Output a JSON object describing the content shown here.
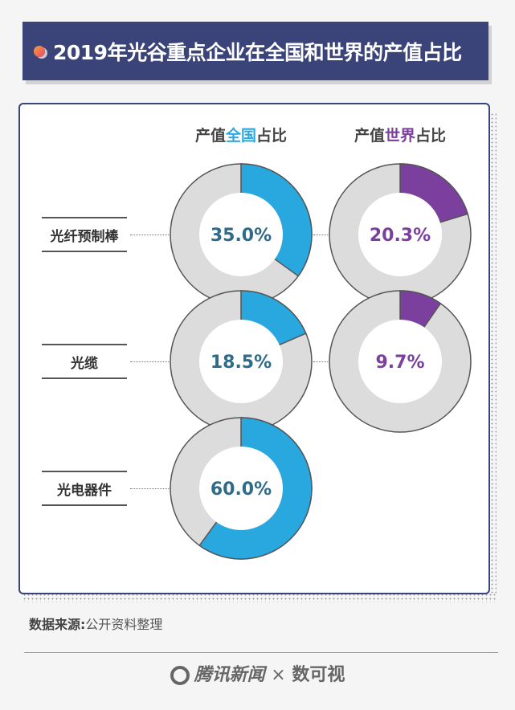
{
  "title": "2019年光谷重点企业在全国和世界的产值占比",
  "chart_data": {
    "type": "pie",
    "columns": [
      {
        "prefix": "产值",
        "highlight": "全国",
        "suffix": "占比",
        "color": "#29a8e0",
        "text_color": "#2e6b8a"
      },
      {
        "prefix": "产值",
        "highlight": "世界",
        "suffix": "占比",
        "color": "#7b3f9e",
        "text_color": "#7b3f9e"
      }
    ],
    "rows": [
      {
        "label": "光纤预制棒",
        "values": [
          35.0,
          20.3
        ],
        "labels": [
          "35.0%",
          "20.3%"
        ]
      },
      {
        "label": "光缆",
        "values": [
          18.5,
          9.7
        ],
        "labels": [
          "18.5%",
          "9.7%"
        ]
      },
      {
        "label": "光电器件",
        "values": [
          60.0,
          null
        ],
        "labels": [
          "60.0%",
          ""
        ]
      }
    ],
    "remainder_color": "#dcdcdc",
    "unit": "%"
  },
  "source": {
    "label": "数据来源",
    "sep": ":",
    "text": "公开资料整理"
  },
  "footer": {
    "brand1": "腾讯新闻",
    "times": "×",
    "brand2": "数可视"
  }
}
